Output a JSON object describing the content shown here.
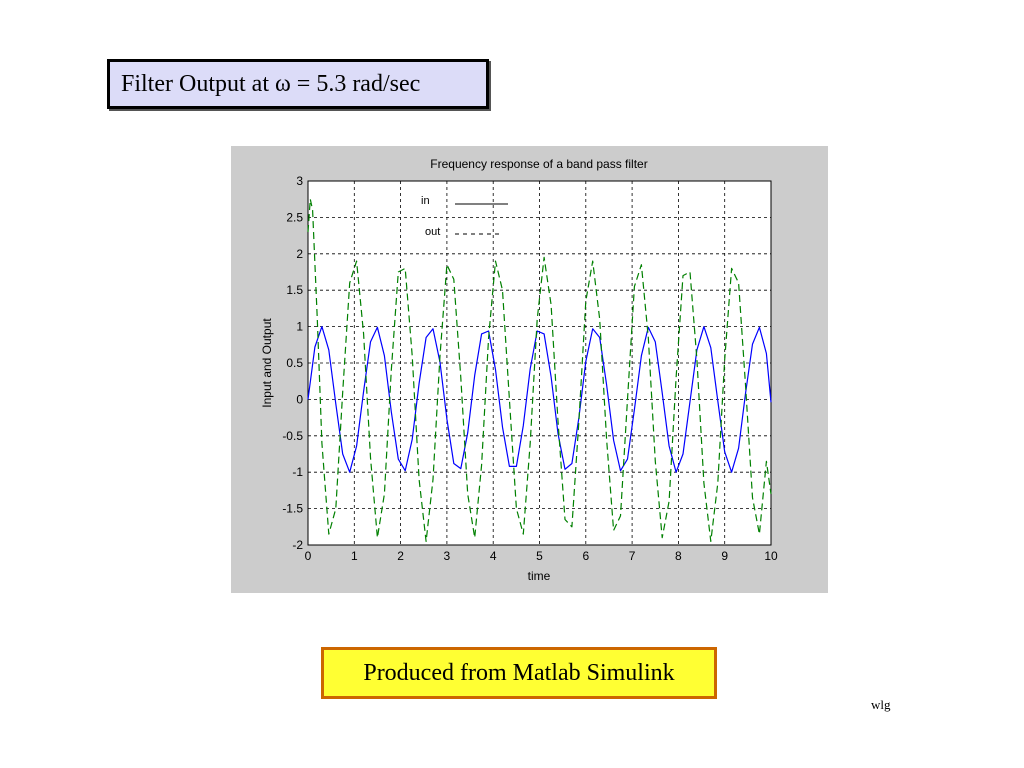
{
  "slide": {
    "title": "Filter Output at ω = 5.3 rad/sec",
    "caption": "Produced from Matlab Simulink",
    "footer": "wlg"
  },
  "chart_data": {
    "type": "line",
    "title": "Frequency response of a band pass filter",
    "xlabel": "time",
    "ylabel": "Input and Output",
    "xlim": [
      0,
      10
    ],
    "ylim": [
      -2,
      3
    ],
    "x_ticks": [
      "0",
      "1",
      "2",
      "3",
      "4",
      "5",
      "6",
      "7",
      "8",
      "9",
      "10"
    ],
    "y_ticks": [
      "3",
      "2.5",
      "2",
      "1.5",
      "1",
      "0.5",
      "0",
      "-0.5",
      "-1",
      "-1.5",
      "-2"
    ],
    "grid": true,
    "legend_position": "top-left",
    "colors": {
      "in": "#0000ff",
      "out": "#008000",
      "figure_bg": "#cccccc",
      "axes_bg": "#ffffff"
    },
    "series": [
      {
        "name": "in",
        "style": "solid",
        "description_values": "sin(5.3 t)",
        "x": [
          0,
          0.15,
          0.3,
          0.45,
          0.6,
          0.75,
          0.9,
          1.05,
          1.2,
          1.35,
          1.5,
          1.65,
          1.8,
          1.95,
          2.1,
          2.25,
          2.4,
          2.55,
          2.7,
          2.85,
          3.0,
          3.15,
          3.3,
          3.45,
          3.6,
          3.75,
          3.9,
          4.05,
          4.2,
          4.35,
          4.5,
          4.65,
          4.8,
          4.95,
          5.1,
          5.25,
          5.4,
          5.55,
          5.7,
          5.85,
          6.0,
          6.15,
          6.3,
          6.45,
          6.6,
          6.75,
          6.9,
          7.05,
          7.2,
          7.35,
          7.5,
          7.65,
          7.8,
          7.95,
          8.1,
          8.25,
          8.4,
          8.55,
          8.7,
          8.85,
          9.0,
          9.15,
          9.3,
          9.45,
          9.6,
          9.75,
          9.9,
          10.0
        ],
        "y": [
          0,
          0.72,
          1.0,
          0.68,
          -0.06,
          -0.75,
          -1.0,
          -0.64,
          0.11,
          0.79,
          0.99,
          0.6,
          -0.17,
          -0.82,
          -0.98,
          -0.55,
          0.22,
          0.85,
          0.97,
          0.51,
          -0.27,
          -0.88,
          -0.95,
          -0.46,
          0.33,
          0.9,
          0.94,
          0.41,
          -0.38,
          -0.92,
          -0.92,
          -0.36,
          0.42,
          0.94,
          0.9,
          0.31,
          -0.47,
          -0.96,
          -0.88,
          -0.25,
          0.52,
          0.97,
          0.85,
          0.2,
          -0.56,
          -0.98,
          -0.82,
          -0.14,
          0.6,
          0.99,
          0.79,
          0.09,
          -0.64,
          -1.0,
          -0.75,
          -0.03,
          0.68,
          1.0,
          0.71,
          -0.02,
          -0.72,
          -1.0,
          -0.67,
          0.08,
          0.76,
          0.99,
          0.63,
          -0.04
        ]
      },
      {
        "name": "out",
        "style": "dashed",
        "x": [
          0,
          0.05,
          0.1,
          0.2,
          0.3,
          0.45,
          0.6,
          0.75,
          0.9,
          1.05,
          1.2,
          1.35,
          1.5,
          1.65,
          1.8,
          1.95,
          2.1,
          2.25,
          2.4,
          2.55,
          2.7,
          2.85,
          3.0,
          3.15,
          3.3,
          3.45,
          3.6,
          3.75,
          3.9,
          4.05,
          4.2,
          4.35,
          4.5,
          4.65,
          4.8,
          4.95,
          5.1,
          5.25,
          5.4,
          5.55,
          5.7,
          5.85,
          6.0,
          6.15,
          6.3,
          6.45,
          6.6,
          6.75,
          6.9,
          7.05,
          7.2,
          7.35,
          7.5,
          7.65,
          7.8,
          7.95,
          8.1,
          8.25,
          8.4,
          8.55,
          8.7,
          8.85,
          9.0,
          9.15,
          9.3,
          9.45,
          9.6,
          9.75,
          9.9,
          10.0
        ],
        "y": [
          2.3,
          2.75,
          2.6,
          1.1,
          -0.6,
          -1.85,
          -1.5,
          0.1,
          1.6,
          1.9,
          0.9,
          -0.8,
          -1.9,
          -1.3,
          0.4,
          1.75,
          1.8,
          0.6,
          -1.1,
          -1.95,
          -1.1,
          0.6,
          1.85,
          1.65,
          0.3,
          -1.3,
          -1.9,
          -0.9,
          0.85,
          1.9,
          1.5,
          0.0,
          -1.5,
          -1.85,
          -0.6,
          1.1,
          1.95,
          1.3,
          -0.3,
          -1.65,
          -1.75,
          -0.3,
          1.35,
          1.9,
          1.1,
          -0.55,
          -1.8,
          -1.6,
          0.0,
          1.55,
          1.85,
          0.85,
          -0.85,
          -1.9,
          -1.4,
          0.3,
          1.7,
          1.75,
          0.55,
          -1.15,
          -1.95,
          -1.15,
          0.55,
          1.8,
          1.6,
          0.2,
          -1.35,
          -1.85,
          -0.85,
          -1.3
        ]
      }
    ]
  }
}
